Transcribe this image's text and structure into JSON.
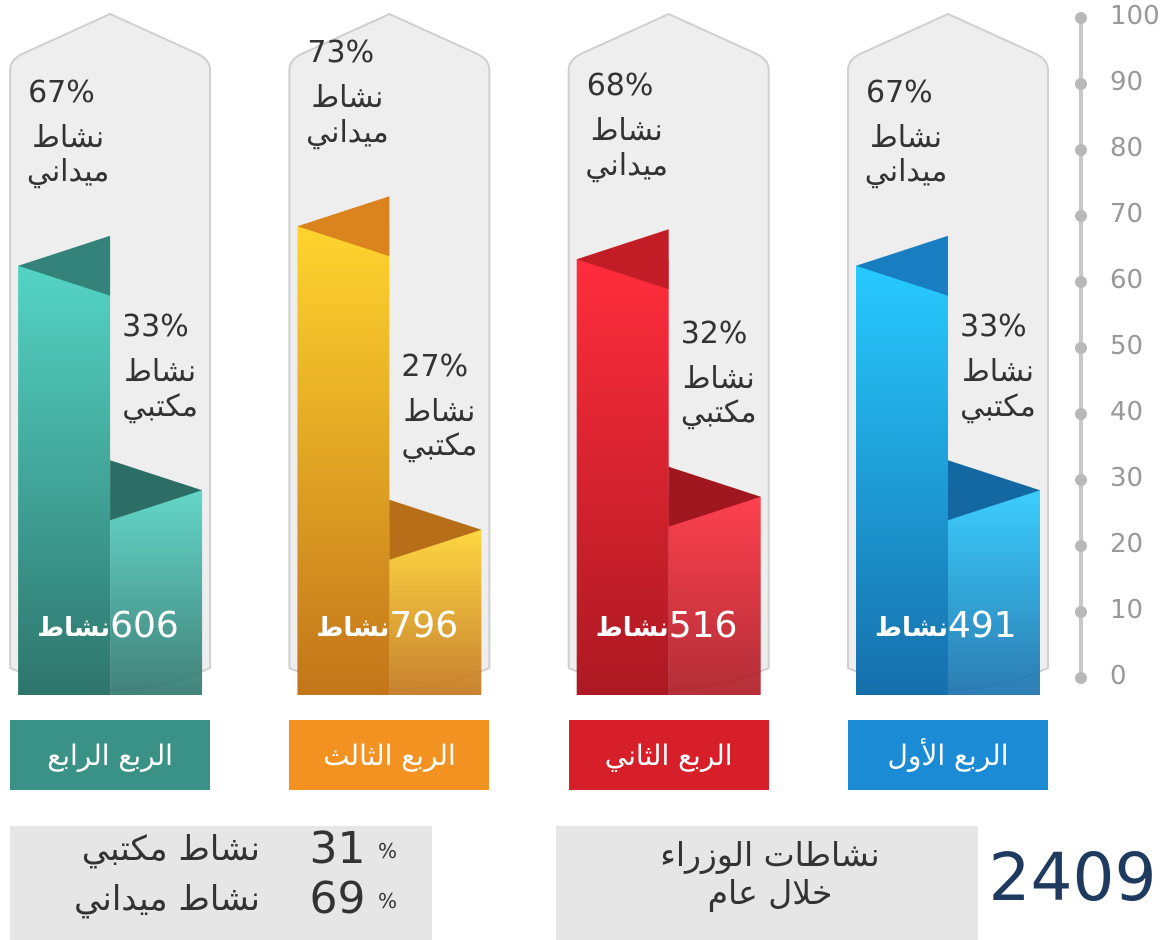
{
  "chart_data": {
    "type": "bar",
    "ylim": [
      0,
      100
    ],
    "yticks": [
      0,
      10,
      20,
      30,
      40,
      50,
      60,
      70,
      80,
      90,
      100
    ],
    "categories": [
      "الربع الأول",
      "الربع الثاني",
      "الربع الثالث",
      "الربع الرابع"
    ],
    "colors": [
      "#1b8bd6",
      "#d71f2a",
      "#f39220",
      "#3a9287"
    ],
    "series": [
      {
        "name": "نشاط ميداني",
        "values": [
          67,
          68,
          73,
          67
        ],
        "value_labels": [
          "67%",
          "68%",
          "73%",
          "67%"
        ]
      },
      {
        "name": "نشاط مكتبي",
        "values": [
          33,
          32,
          27,
          33
        ],
        "value_labels": [
          "33%",
          "32%",
          "27%",
          "33%"
        ]
      }
    ],
    "counts": [
      491,
      516,
      796,
      606
    ],
    "count_unit": "نشاط"
  },
  "summary": {
    "total": 2409,
    "caption": "نشاطات الوزراء خلال عام",
    "items": [
      {
        "label": "نشاط مكتبي",
        "value": 31,
        "unit": "%"
      },
      {
        "label": "نشاط ميداني",
        "value": 69,
        "unit": "%"
      }
    ]
  }
}
